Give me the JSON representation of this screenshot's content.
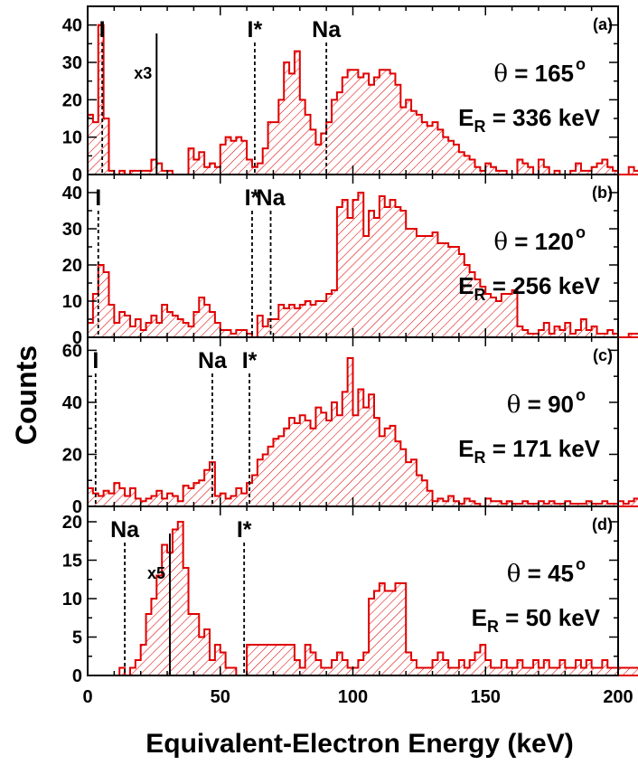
{
  "chart_data": {
    "type": "bar",
    "xlabel": "Equivalent-Electron Energy (keV)",
    "ylabel": "Counts",
    "xlim": [
      0,
      200
    ],
    "x_ticks": [
      "0",
      "50",
      "100",
      "150",
      "200"
    ],
    "bin_width_kev": 2,
    "color": "#e00000",
    "panels": [
      {
        "label": "(a)",
        "theta": "165",
        "er": "336 keV",
        "ylim": [
          0,
          45
        ],
        "y_ticks": [
          0,
          10,
          20,
          30,
          40
        ],
        "peaks": [
          {
            "text": "I",
            "x": 5.5
          },
          {
            "text": "I*",
            "x": 63
          },
          {
            "text": "Na",
            "x": 90
          }
        ],
        "scale_marker": {
          "text": "x3",
          "x": 26
        },
        "values": [
          16,
          14,
          40,
          15,
          1,
          0,
          1,
          0,
          1,
          1,
          1,
          1,
          4,
          3,
          1,
          1,
          0,
          0,
          0,
          7,
          4,
          6,
          2,
          3,
          2,
          8,
          10,
          9,
          10,
          9,
          4,
          2,
          3,
          7,
          14,
          14,
          20,
          30,
          27,
          33,
          20,
          16,
          12,
          8,
          11,
          14,
          20,
          22,
          26,
          28,
          28,
          26,
          27,
          24,
          26,
          28,
          28,
          27,
          24,
          18,
          20,
          17,
          16,
          14,
          13,
          14,
          12,
          10,
          9,
          8,
          6,
          5,
          4,
          2,
          1,
          3,
          2,
          1,
          1,
          0,
          0,
          4,
          3,
          2,
          0,
          4,
          2,
          0,
          1,
          0,
          0,
          1,
          3,
          1,
          1,
          2,
          3,
          4,
          2,
          1,
          0,
          0,
          2,
          1,
          2,
          1,
          0,
          3,
          2,
          1,
          0,
          1,
          6,
          2,
          1,
          1,
          5,
          2,
          1,
          0,
          2,
          1,
          1,
          0,
          1,
          1,
          2,
          2,
          1,
          1,
          1,
          0,
          0,
          0,
          0,
          5,
          3,
          0,
          1,
          1,
          1,
          0,
          4,
          2,
          1,
          3,
          4,
          2,
          0,
          1,
          1,
          6,
          2,
          1,
          2,
          1,
          1,
          0,
          1,
          1,
          1,
          0,
          1,
          1,
          5,
          2,
          2,
          1,
          1,
          2,
          0,
          1,
          0,
          1,
          1,
          2,
          2,
          5,
          4,
          6,
          4,
          0,
          1,
          1,
          3,
          2,
          1,
          0,
          0,
          2,
          1,
          1,
          2,
          6,
          2,
          1,
          2,
          1,
          0,
          2
        ]
      },
      {
        "label": "(b)",
        "theta": "120",
        "er": "256 keV",
        "ylim": [
          0,
          45
        ],
        "y_ticks": [
          0,
          10,
          20,
          30,
          40
        ],
        "peaks": [
          {
            "text": "I",
            "x": 4
          },
          {
            "text": "I*",
            "x": 62
          },
          {
            "text": "Na",
            "x": 69
          }
        ],
        "values": [
          4,
          12,
          20,
          18,
          9,
          4,
          7,
          6,
          3,
          5,
          2,
          4,
          6,
          4,
          9,
          7,
          6,
          5,
          4,
          3,
          7,
          11,
          9,
          7,
          4,
          2,
          2,
          1,
          2,
          2,
          1,
          0,
          6,
          3,
          5,
          5,
          9,
          8,
          9,
          8,
          9,
          10,
          9,
          10,
          10,
          12,
          13,
          36,
          38,
          33,
          38,
          40,
          28,
          35,
          33,
          39,
          36,
          38,
          36,
          35,
          30,
          30,
          28,
          28,
          28,
          29,
          26,
          26,
          25,
          25,
          23,
          20,
          18,
          16,
          14,
          12,
          11,
          10,
          12,
          12,
          13,
          3,
          2,
          1,
          1,
          2,
          4,
          1,
          3,
          2,
          4,
          1,
          2,
          5,
          2,
          3,
          1,
          1,
          2,
          1,
          0,
          0,
          1,
          1,
          0,
          1,
          3,
          1,
          2,
          1,
          1,
          0,
          1,
          2,
          0,
          1,
          0,
          0,
          1,
          1,
          1,
          2,
          1,
          0,
          1,
          0,
          3,
          2,
          1,
          0,
          1,
          0,
          1,
          1,
          1,
          0,
          2,
          1,
          2,
          1,
          0,
          1,
          1,
          0,
          1,
          2,
          1,
          0,
          1,
          0,
          1,
          2,
          2,
          1,
          3,
          2,
          3,
          4,
          2,
          1,
          1,
          0,
          1,
          1,
          2,
          1,
          1,
          0,
          1,
          0,
          2,
          1,
          1,
          3,
          2,
          1,
          0,
          1,
          1,
          0,
          1,
          1,
          2,
          0,
          1,
          1,
          2,
          4,
          3,
          2,
          4,
          3,
          4,
          2,
          3,
          1
        ]
      },
      {
        "label": "(c)",
        "theta": "90",
        "er": "171 keV",
        "ylim": [
          0,
          65
        ],
        "y_ticks": [
          0,
          20,
          40,
          60
        ],
        "peaks": [
          {
            "text": "I",
            "x": 3
          },
          {
            "text": "Na",
            "x": 47
          },
          {
            "text": "I*",
            "x": 61
          }
        ],
        "values": [
          7,
          5,
          4,
          6,
          5,
          9,
          7,
          4,
          7,
          3,
          2,
          3,
          4,
          6,
          3,
          5,
          4,
          2,
          8,
          7,
          9,
          10,
          14,
          17,
          4,
          5,
          3,
          4,
          7,
          5,
          9,
          12,
          18,
          20,
          23,
          26,
          27,
          30,
          34,
          32,
          35,
          33,
          30,
          38,
          36,
          33,
          40,
          35,
          44,
          57,
          35,
          45,
          38,
          43,
          34,
          27,
          30,
          31,
          25,
          22,
          17,
          18,
          12,
          10,
          6,
          2,
          3,
          2,
          4,
          2,
          1,
          3,
          2,
          1,
          0,
          3,
          2,
          2,
          1,
          2,
          1,
          1,
          2,
          1,
          1,
          2,
          1,
          2,
          1,
          1,
          2,
          1,
          1,
          1,
          2,
          1,
          1,
          2,
          1,
          1,
          2,
          1,
          2,
          3,
          1,
          2,
          1,
          2,
          1,
          1,
          2,
          1,
          2,
          1,
          1,
          2,
          1,
          2,
          3,
          2,
          1,
          2,
          1,
          1,
          2,
          1,
          1,
          2,
          1,
          2,
          1,
          2,
          3,
          2,
          1,
          1,
          2,
          1,
          1,
          2,
          1,
          2,
          1,
          1,
          2,
          1,
          1,
          2,
          1,
          1,
          2,
          1,
          2,
          1,
          1,
          2,
          1,
          2,
          1,
          1,
          2,
          1,
          2,
          3,
          2,
          1,
          1,
          2,
          1,
          2,
          1,
          2,
          1,
          1,
          2,
          1,
          3,
          6,
          2,
          1,
          1,
          2,
          1,
          2,
          1,
          2,
          1,
          1,
          2,
          1,
          2,
          1,
          2,
          1,
          2,
          1,
          1,
          1,
          2,
          1
        ]
      },
      {
        "label": "(d)",
        "theta": "45",
        "er": "50 keV",
        "ylim": [
          0,
          22
        ],
        "y_ticks": [
          0,
          5,
          10,
          15,
          20
        ],
        "peaks": [
          {
            "text": "Na",
            "x": 14
          },
          {
            "text": "I*",
            "x": 59
          }
        ],
        "scale_marker": {
          "text": "x5",
          "x": 31
        },
        "values": [
          0,
          0,
          0,
          0,
          0,
          0,
          1,
          0,
          1,
          2,
          4,
          8,
          10,
          13,
          17,
          16,
          19,
          20,
          14,
          8,
          8,
          5,
          6,
          2,
          4,
          3,
          1,
          1,
          0,
          0,
          4,
          4,
          4,
          4,
          4,
          4,
          4,
          4,
          4,
          2,
          1,
          4,
          3,
          2,
          1,
          1,
          2,
          3,
          2,
          1,
          1,
          2,
          3,
          10,
          11,
          12,
          11,
          11,
          12,
          12,
          3,
          2,
          1,
          1,
          1,
          2,
          3,
          2,
          1,
          1,
          2,
          1,
          2,
          3,
          4,
          2,
          1,
          1,
          2,
          1,
          1,
          2,
          1,
          1,
          2,
          1,
          2,
          1,
          1,
          2,
          1,
          1,
          2,
          1,
          2,
          1,
          1,
          2,
          1,
          1,
          1,
          1,
          1,
          1,
          1,
          1,
          1,
          1,
          1,
          2,
          1,
          2,
          1,
          1,
          2,
          1,
          1,
          2,
          1,
          3,
          2,
          2,
          1,
          1,
          2,
          1,
          2,
          1,
          2,
          3,
          2,
          1,
          1,
          2,
          1,
          1,
          2,
          1,
          1,
          2,
          1,
          2,
          1,
          1,
          2,
          1,
          2,
          1,
          1,
          2,
          1,
          1,
          1,
          1,
          2,
          1,
          2,
          1,
          2,
          3,
          2,
          1,
          1,
          2,
          1,
          3,
          2,
          1,
          1,
          2,
          1,
          2,
          3,
          4,
          3,
          1,
          2,
          1,
          1,
          2,
          1,
          1,
          2,
          1,
          2,
          1,
          1,
          2,
          1,
          1,
          3,
          1,
          2,
          1,
          1,
          2,
          1,
          2,
          1,
          1
        ]
      }
    ]
  }
}
